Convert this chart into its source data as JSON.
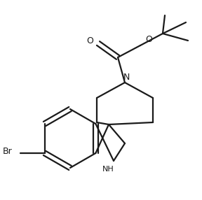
{
  "background_color": "#ffffff",
  "line_color": "#1a1a1a",
  "line_width": 1.6,
  "figsize": [
    2.88,
    2.86
  ],
  "dpi": 100,
  "xlim": [
    0,
    288
  ],
  "ylim": [
    0,
    286
  ]
}
